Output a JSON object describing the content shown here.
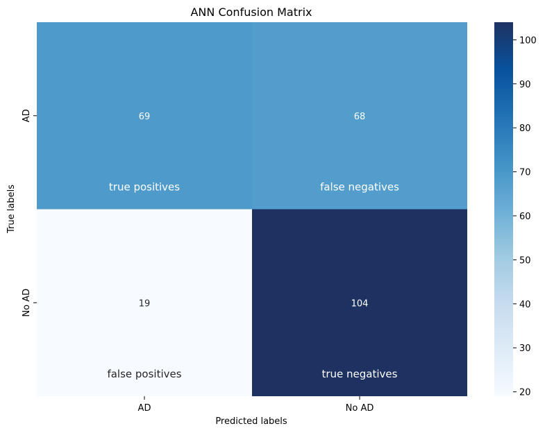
{
  "chart_data": {
    "type": "heatmap",
    "title": "ANN Confusion Matrix",
    "xlabel": "Predicted labels",
    "ylabel": "True labels",
    "x_categories": [
      "AD",
      "No AD"
    ],
    "y_categories": [
      "AD",
      "No AD"
    ],
    "values": [
      [
        69,
        68
      ],
      [
        19,
        104
      ]
    ],
    "annotations": [
      [
        "true positives",
        "false negatives"
      ],
      [
        "false positives",
        "true negatives"
      ]
    ],
    "colormap": "Blues",
    "color_range": [
      19,
      104
    ],
    "colorbar_ticks": [
      20,
      30,
      40,
      50,
      60,
      70,
      80,
      90,
      100
    ],
    "grid": false
  }
}
